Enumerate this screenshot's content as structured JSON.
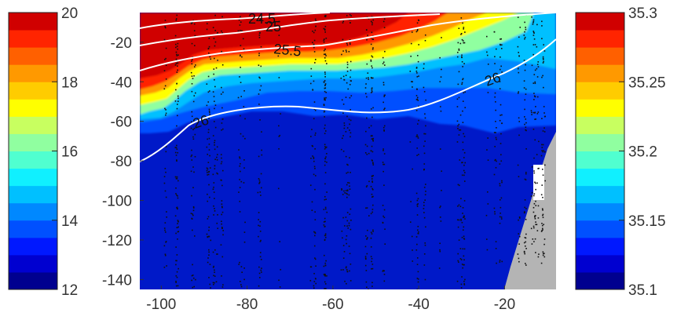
{
  "chart_data": {
    "type": "heatmap",
    "title": "",
    "x_ticks": [
      "-100",
      "-80",
      "-60",
      "-40",
      "-20"
    ],
    "x_tick_values": [
      -100,
      -80,
      -60,
      -40,
      -20
    ],
    "y_ticks": [
      "-20",
      "-40",
      "-60",
      "-80",
      "-100",
      "-120",
      "-140"
    ],
    "y_tick_values": [
      -20,
      -40,
      -60,
      -80,
      -100,
      -120,
      -140
    ],
    "xlim": [
      -105,
      -8
    ],
    "ylim": [
      -145,
      -5
    ],
    "grid": false,
    "contour_labels": [
      "24.5",
      "25",
      "25.5",
      "26",
      "26"
    ],
    "colorbar_left": {
      "tick_labels": [
        "20",
        "18",
        "16",
        "14",
        "12"
      ],
      "min": 12,
      "max": 20,
      "levels": 16
    },
    "colorbar_right": {
      "tick_labels": [
        "35.3",
        "35.25",
        "35.2",
        "35.15",
        "35.1"
      ],
      "min": 35.1,
      "max": 35.3,
      "levels": 16
    },
    "colors": {
      "deep": "#0019c8",
      "ramp": [
        "#00008f",
        "#0000d0",
        "#0018ff",
        "#0050ff",
        "#0088ff",
        "#00c0ff",
        "#10f0ff",
        "#50ffd0",
        "#90ffa0",
        "#c8ff60",
        "#ffff00",
        "#ffcc00",
        "#ff9900",
        "#ff6000",
        "#ff2400",
        "#d00000"
      ],
      "land": "#b4b4b4",
      "contour": "#ffffff"
    }
  }
}
